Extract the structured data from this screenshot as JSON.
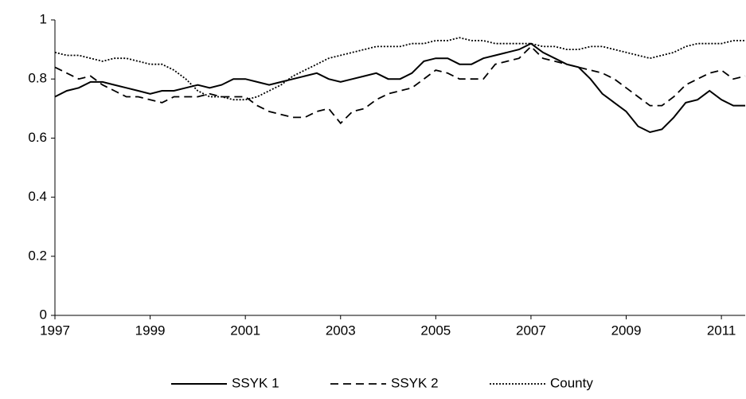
{
  "chart_data": {
    "type": "line",
    "x": [
      1997,
      1997.25,
      1997.5,
      1997.75,
      1998,
      1998.25,
      1998.5,
      1998.75,
      1999,
      1999.25,
      1999.5,
      1999.75,
      2000,
      2000.25,
      2000.5,
      2000.75,
      2001,
      2001.25,
      2001.5,
      2001.75,
      2002,
      2002.25,
      2002.5,
      2002.75,
      2003,
      2003.25,
      2003.5,
      2003.75,
      2004,
      2004.25,
      2004.5,
      2004.75,
      2005,
      2005.25,
      2005.5,
      2005.75,
      2006,
      2006.25,
      2006.5,
      2006.75,
      2007,
      2007.25,
      2007.5,
      2007.75,
      2008,
      2008.25,
      2008.5,
      2008.75,
      2009,
      2009.25,
      2009.5,
      2009.75,
      2010,
      2010.25,
      2010.5,
      2010.75,
      2011,
      2011.25,
      2011.5
    ],
    "series": [
      {
        "name": "SSYK 1",
        "color": "#000000",
        "dash": "solid",
        "values": [
          0.74,
          0.76,
          0.77,
          0.79,
          0.79,
          0.78,
          0.77,
          0.76,
          0.75,
          0.76,
          0.76,
          0.77,
          0.78,
          0.77,
          0.78,
          0.8,
          0.8,
          0.79,
          0.78,
          0.79,
          0.8,
          0.81,
          0.82,
          0.8,
          0.79,
          0.8,
          0.81,
          0.82,
          0.8,
          0.8,
          0.82,
          0.86,
          0.87,
          0.87,
          0.85,
          0.85,
          0.87,
          0.88,
          0.89,
          0.9,
          0.92,
          0.89,
          0.87,
          0.85,
          0.84,
          0.8,
          0.75,
          0.72,
          0.69,
          0.64,
          0.62,
          0.63,
          0.67,
          0.72,
          0.73,
          0.76,
          0.73,
          0.71,
          0.71
        ]
      },
      {
        "name": "SSYK 2",
        "color": "#000000",
        "dash": "dashed",
        "values": [
          0.84,
          0.82,
          0.8,
          0.81,
          0.78,
          0.76,
          0.74,
          0.74,
          0.73,
          0.72,
          0.74,
          0.74,
          0.74,
          0.75,
          0.74,
          0.74,
          0.74,
          0.71,
          0.69,
          0.68,
          0.67,
          0.67,
          0.69,
          0.7,
          0.65,
          0.69,
          0.7,
          0.73,
          0.75,
          0.76,
          0.77,
          0.8,
          0.83,
          0.82,
          0.8,
          0.8,
          0.8,
          0.85,
          0.86,
          0.87,
          0.91,
          0.87,
          0.86,
          0.85,
          0.84,
          0.83,
          0.82,
          0.8,
          0.77,
          0.74,
          0.71,
          0.71,
          0.74,
          0.78,
          0.8,
          0.82,
          0.83,
          0.8,
          0.81
        ]
      },
      {
        "name": "County",
        "color": "#000000",
        "dash": "dotted",
        "values": [
          0.89,
          0.88,
          0.88,
          0.87,
          0.86,
          0.87,
          0.87,
          0.86,
          0.85,
          0.85,
          0.83,
          0.8,
          0.76,
          0.74,
          0.74,
          0.73,
          0.73,
          0.74,
          0.76,
          0.78,
          0.81,
          0.83,
          0.85,
          0.87,
          0.88,
          0.89,
          0.9,
          0.91,
          0.91,
          0.91,
          0.92,
          0.92,
          0.93,
          0.93,
          0.94,
          0.93,
          0.93,
          0.92,
          0.92,
          0.92,
          0.92,
          0.91,
          0.91,
          0.9,
          0.9,
          0.91,
          0.91,
          0.9,
          0.89,
          0.88,
          0.87,
          0.88,
          0.89,
          0.91,
          0.92,
          0.92,
          0.92,
          0.93,
          0.93
        ]
      }
    ],
    "xlim": [
      1997,
      2011.5
    ],
    "xticks": [
      1997,
      1999,
      2001,
      2003,
      2005,
      2007,
      2009,
      2011
    ],
    "ylim": [
      0,
      1
    ],
    "yticks": [
      0,
      0.2,
      0.4,
      0.6,
      0.8,
      1
    ],
    "grid": false,
    "legend": "bottom"
  }
}
